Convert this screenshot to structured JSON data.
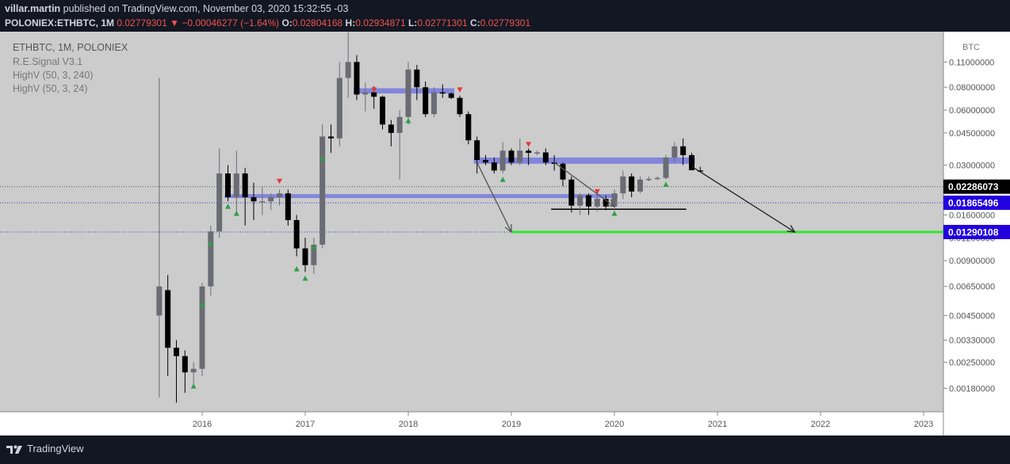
{
  "header": {
    "publisher": "villar.martin",
    "published_text": "published on TradingView.com, November 03, 2020 15:32:55 -03",
    "symbol": "POLONIEX:ETHBTC, 1M",
    "last": "0.02779301",
    "change_arrow": "▼",
    "change": "−0.00046277 (−1.64%)",
    "o_label": "O:",
    "o_value": "0.02804168",
    "h_label": "H:",
    "h_value": "0.02934871",
    "l_label": "L:",
    "l_value": "0.02771301",
    "c_label": "C:",
    "c_value": "0.02779301"
  },
  "footer": {
    "brand": "TradingView"
  },
  "colors": {
    "background": "#131722",
    "plot_bg": "#cccccc",
    "axis_bg": "#ffffff",
    "up_candle": "#6b6b73",
    "down_candle": "#000000",
    "zone": "#6a6fe0",
    "target_line": "#33e533",
    "buy_signal": "#2e9e4a",
    "sell_signal": "#e53935",
    "price_tag_blue": "#2200dd"
  },
  "chart_data": {
    "type": "candlestick",
    "title": "ETHBTC, 1M, POLONIEX",
    "legend": [
      "R.E.Signal V3.1",
      "HighV (50, 3, 240)",
      "HighV (50, 3, 24)"
    ],
    "legend_position": "top-left",
    "y_scale": "log",
    "y_unit": "BTC",
    "ylim": [
      0.0016,
      0.11
    ],
    "y_ticks": [
      "0.11000000",
      "0.08000000",
      "0.06000000",
      "0.04500000",
      "0.03000000",
      "0.01600000",
      "0.01200000",
      "0.00900000",
      "0.00650000",
      "0.00450000",
      "0.00330000",
      "0.00250000",
      "0.00180000"
    ],
    "y_tick_values": [
      0.11,
      0.08,
      0.06,
      0.045,
      0.03,
      0.016,
      0.012,
      0.009,
      0.0065,
      0.0045,
      0.0033,
      0.0025,
      0.0018
    ],
    "x_ticks": [
      "2016",
      "2017",
      "2018",
      "2019",
      "2020",
      "2021",
      "2022",
      "2023"
    ],
    "x_tick_dates": [
      "2016-01",
      "2017-01",
      "2018-01",
      "2019-01",
      "2020-01",
      "2021-01",
      "2022-01",
      "2023-01"
    ],
    "price_labels": [
      {
        "text": "0.02286073",
        "value": 0.02286073,
        "style": "black"
      },
      {
        "text": "0.01865496",
        "value": 0.01865496,
        "style": "blue"
      },
      {
        "text": "0.01290108",
        "value": 0.01290108,
        "style": "blue"
      }
    ],
    "candles": [
      {
        "d": "2015-08",
        "o": 0.0045,
        "h": 0.09,
        "l": 0.0016,
        "c": 0.0065
      },
      {
        "d": "2015-09",
        "o": 0.0062,
        "h": 0.0075,
        "l": 0.0021,
        "c": 0.003
      },
      {
        "d": "2015-10",
        "o": 0.003,
        "h": 0.0033,
        "l": 0.0015,
        "c": 0.0027
      },
      {
        "d": "2015-11",
        "o": 0.0027,
        "h": 0.0029,
        "l": 0.0017,
        "c": 0.0022
      },
      {
        "d": "2015-12",
        "o": 0.0022,
        "h": 0.0025,
        "l": 0.0019,
        "c": 0.0023
      },
      {
        "d": "2016-01",
        "o": 0.0023,
        "h": 0.0068,
        "l": 0.0021,
        "c": 0.0065
      },
      {
        "d": "2016-02",
        "o": 0.0065,
        "h": 0.014,
        "l": 0.0058,
        "c": 0.013
      },
      {
        "d": "2016-03",
        "o": 0.013,
        "h": 0.037,
        "l": 0.012,
        "c": 0.027
      },
      {
        "d": "2016-04",
        "o": 0.027,
        "h": 0.03,
        "l": 0.019,
        "c": 0.02
      },
      {
        "d": "2016-05",
        "o": 0.02,
        "h": 0.036,
        "l": 0.016,
        "c": 0.027
      },
      {
        "d": "2016-06",
        "o": 0.027,
        "h": 0.029,
        "l": 0.014,
        "c": 0.02
      },
      {
        "d": "2016-07",
        "o": 0.02,
        "h": 0.024,
        "l": 0.015,
        "c": 0.019
      },
      {
        "d": "2016-08",
        "o": 0.019,
        "h": 0.023,
        "l": 0.016,
        "c": 0.019
      },
      {
        "d": "2016-09",
        "o": 0.019,
        "h": 0.021,
        "l": 0.017,
        "c": 0.02
      },
      {
        "d": "2016-10",
        "o": 0.02,
        "h": 0.022,
        "l": 0.018,
        "c": 0.021
      },
      {
        "d": "2016-11",
        "o": 0.021,
        "h": 0.022,
        "l": 0.014,
        "c": 0.015
      },
      {
        "d": "2016-12",
        "o": 0.015,
        "h": 0.016,
        "l": 0.0095,
        "c": 0.0105
      },
      {
        "d": "2017-01",
        "o": 0.0105,
        "h": 0.012,
        "l": 0.0078,
        "c": 0.0085
      },
      {
        "d": "2017-02",
        "o": 0.0085,
        "h": 0.012,
        "l": 0.0076,
        "c": 0.011
      },
      {
        "d": "2017-03",
        "o": 0.011,
        "h": 0.05,
        "l": 0.0105,
        "c": 0.043
      },
      {
        "d": "2017-04",
        "o": 0.043,
        "h": 0.05,
        "l": 0.035,
        "c": 0.042
      },
      {
        "d": "2017-05",
        "o": 0.042,
        "h": 0.11,
        "l": 0.038,
        "c": 0.09
      },
      {
        "d": "2017-06",
        "o": 0.09,
        "h": 0.16,
        "l": 0.07,
        "c": 0.11
      },
      {
        "d": "2017-07",
        "o": 0.11,
        "h": 0.12,
        "l": 0.068,
        "c": 0.073
      },
      {
        "d": "2017-08",
        "o": 0.073,
        "h": 0.085,
        "l": 0.059,
        "c": 0.075
      },
      {
        "d": "2017-09",
        "o": 0.075,
        "h": 0.081,
        "l": 0.061,
        "c": 0.071
      },
      {
        "d": "2017-10",
        "o": 0.071,
        "h": 0.072,
        "l": 0.047,
        "c": 0.05
      },
      {
        "d": "2017-11",
        "o": 0.05,
        "h": 0.053,
        "l": 0.038,
        "c": 0.045
      },
      {
        "d": "2017-12",
        "o": 0.045,
        "h": 0.06,
        "l": 0.025,
        "c": 0.055
      },
      {
        "d": "2018-01",
        "o": 0.055,
        "h": 0.11,
        "l": 0.05,
        "c": 0.1
      },
      {
        "d": "2018-02",
        "o": 0.1,
        "h": 0.106,
        "l": 0.068,
        "c": 0.08
      },
      {
        "d": "2018-03",
        "o": 0.08,
        "h": 0.086,
        "l": 0.055,
        "c": 0.057
      },
      {
        "d": "2018-04",
        "o": 0.057,
        "h": 0.08,
        "l": 0.055,
        "c": 0.075
      },
      {
        "d": "2018-05",
        "o": 0.075,
        "h": 0.083,
        "l": 0.07,
        "c": 0.074
      },
      {
        "d": "2018-06",
        "o": 0.074,
        "h": 0.075,
        "l": 0.069,
        "c": 0.07
      },
      {
        "d": "2018-07",
        "o": 0.07,
        "h": 0.072,
        "l": 0.055,
        "c": 0.057
      },
      {
        "d": "2018-08",
        "o": 0.057,
        "h": 0.059,
        "l": 0.039,
        "c": 0.041
      },
      {
        "d": "2018-09",
        "o": 0.041,
        "h": 0.043,
        "l": 0.027,
        "c": 0.032
      },
      {
        "d": "2018-10",
        "o": 0.032,
        "h": 0.034,
        "l": 0.03,
        "c": 0.031
      },
      {
        "d": "2018-11",
        "o": 0.031,
        "h": 0.033,
        "l": 0.027,
        "c": 0.028
      },
      {
        "d": "2018-12",
        "o": 0.028,
        "h": 0.04,
        "l": 0.027,
        "c": 0.036
      },
      {
        "d": "2019-01",
        "o": 0.036,
        "h": 0.037,
        "l": 0.03,
        "c": 0.031
      },
      {
        "d": "2019-02",
        "o": 0.031,
        "h": 0.042,
        "l": 0.03,
        "c": 0.036
      },
      {
        "d": "2019-03",
        "o": 0.036,
        "h": 0.037,
        "l": 0.03,
        "c": 0.035
      },
      {
        "d": "2019-04",
        "o": 0.035,
        "h": 0.036,
        "l": 0.034,
        "c": 0.0352
      },
      {
        "d": "2019-05",
        "o": 0.0352,
        "h": 0.037,
        "l": 0.03,
        "c": 0.031
      },
      {
        "d": "2019-06",
        "o": 0.031,
        "h": 0.034,
        "l": 0.028,
        "c": 0.0305
      },
      {
        "d": "2019-07",
        "o": 0.0305,
        "h": 0.031,
        "l": 0.023,
        "c": 0.025
      },
      {
        "d": "2019-08",
        "o": 0.025,
        "h": 0.026,
        "l": 0.0165,
        "c": 0.018
      },
      {
        "d": "2019-09",
        "o": 0.018,
        "h": 0.021,
        "l": 0.016,
        "c": 0.0205
      },
      {
        "d": "2019-10",
        "o": 0.0205,
        "h": 0.021,
        "l": 0.016,
        "c": 0.0178
      },
      {
        "d": "2019-11",
        "o": 0.0178,
        "h": 0.021,
        "l": 0.0167,
        "c": 0.0196
      },
      {
        "d": "2019-12",
        "o": 0.0196,
        "h": 0.0205,
        "l": 0.017,
        "c": 0.0178
      },
      {
        "d": "2020-01",
        "o": 0.0178,
        "h": 0.022,
        "l": 0.0168,
        "c": 0.021
      },
      {
        "d": "2020-02",
        "o": 0.021,
        "h": 0.028,
        "l": 0.0195,
        "c": 0.026
      },
      {
        "d": "2020-03",
        "o": 0.026,
        "h": 0.027,
        "l": 0.02,
        "c": 0.0215
      },
      {
        "d": "2020-04",
        "o": 0.0215,
        "h": 0.026,
        "l": 0.021,
        "c": 0.025
      },
      {
        "d": "2020-05",
        "o": 0.025,
        "h": 0.026,
        "l": 0.0245,
        "c": 0.0252
      },
      {
        "d": "2020-06",
        "o": 0.0252,
        "h": 0.026,
        "l": 0.0248,
        "c": 0.0255
      },
      {
        "d": "2020-07",
        "o": 0.0255,
        "h": 0.034,
        "l": 0.025,
        "c": 0.033
      },
      {
        "d": "2020-08",
        "o": 0.033,
        "h": 0.04,
        "l": 0.031,
        "c": 0.038
      },
      {
        "d": "2020-09",
        "o": 0.038,
        "h": 0.042,
        "l": 0.03,
        "c": 0.034
      },
      {
        "d": "2020-10",
        "o": 0.034,
        "h": 0.035,
        "l": 0.0288,
        "c": 0.0281
      },
      {
        "d": "2020-11",
        "o": 0.02804168,
        "h": 0.02934871,
        "l": 0.02771301,
        "c": 0.02779301
      }
    ],
    "buy_signals": [
      {
        "d": "2015-12",
        "v": 0.00185
      },
      {
        "d": "2016-01",
        "v": 0.0052
      },
      {
        "d": "2016-02",
        "v": 0.0112
      },
      {
        "d": "2016-04",
        "v": 0.0178
      },
      {
        "d": "2016-05",
        "v": 0.0163
      },
      {
        "d": "2016-12",
        "v": 0.0081
      },
      {
        "d": "2017-01",
        "v": 0.0072
      },
      {
        "d": "2017-02",
        "v": 0.0107
      },
      {
        "d": "2017-03",
        "v": 0.0325
      },
      {
        "d": "2018-01",
        "v": 0.0525
      },
      {
        "d": "2018-12",
        "v": 0.025
      },
      {
        "d": "2020-01",
        "v": 0.0163
      },
      {
        "d": "2020-07",
        "v": 0.0235
      }
    ],
    "sell_signals": [
      {
        "d": "2016-10",
        "v": 0.0245
      },
      {
        "d": "2017-09",
        "v": 0.0775
      },
      {
        "d": "2018-07",
        "v": 0.0775
      },
      {
        "d": "2019-03",
        "v": 0.039
      },
      {
        "d": "2019-11",
        "v": 0.0215
      }
    ],
    "zones": [
      {
        "from": "2017-07",
        "to": "2018-06",
        "low": 0.074,
        "high": 0.079
      },
      {
        "from": "2018-09",
        "to": "2020-10",
        "low": 0.0305,
        "high": 0.033
      },
      {
        "from": "2016-04",
        "to": "2020-01",
        "low": 0.0198,
        "high": 0.0208
      }
    ],
    "support_line": {
      "from": "2019-06",
      "to": "2020-09",
      "value": 0.0172
    },
    "target_line": {
      "from": "2019-01",
      "to": "2022-12",
      "value": 0.01290108
    },
    "arrows": [
      {
        "from_d": "2018-09",
        "from_v": 0.031,
        "to_d": "2019-01",
        "to_v": 0.0129,
        "color": "#555555"
      },
      {
        "from_d": "2019-06",
        "from_v": 0.031,
        "to_d": "2020-01",
        "to_v": 0.0178,
        "color": "#555555"
      },
      {
        "from_d": "2020-10",
        "from_v": 0.0295,
        "to_d": "2021-10",
        "to_v": 0.0129,
        "color": "#222222"
      }
    ],
    "dotted_lines": [
      0.02286073,
      0.01865496,
      0.01290108
    ]
  }
}
